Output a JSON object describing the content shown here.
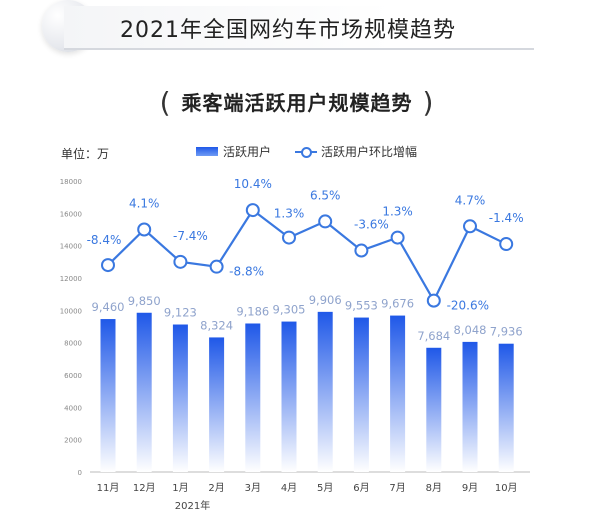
{
  "header": {
    "title": "2021年全国网约车市场规模趋势",
    "subtitle": "乘客端活跃用户规模趋势",
    "paren_left": "(",
    "paren_right": ")"
  },
  "unit_label": "单位：万",
  "colors": {
    "bar_top": "#1f58e8",
    "bar_bottom": "#ffffff",
    "line": "#3a78e0",
    "bar_label": "#8fa3cc",
    "line_label": "#3a78e0"
  },
  "chart_data": {
    "type": "bar",
    "categories": [
      "11月",
      "12月",
      "1月",
      "2月",
      "3月",
      "4月",
      "5月",
      "6月",
      "7月",
      "8月",
      "9月",
      "10月"
    ],
    "x_group_label": "2021年",
    "ylim": [
      0,
      18000
    ],
    "yticks": [
      0,
      2000,
      4000,
      6000,
      8000,
      10000,
      12000,
      14000,
      16000,
      18000
    ],
    "grid": false,
    "legend_position": "top",
    "series": [
      {
        "name": "活跃用户",
        "type": "bar",
        "values": [
          9460,
          9850,
          9123,
          8324,
          9186,
          9305,
          9906,
          9553,
          9676,
          7684,
          8048,
          7936
        ],
        "labels": [
          "9,460",
          "9,850",
          "9,123",
          "8,324",
          "9,186",
          "9,305",
          "9,906",
          "9,553",
          "9,676",
          "7,684",
          "8,048",
          "7,936"
        ]
      },
      {
        "name": "活跃用户环比增幅",
        "type": "line",
        "values": [
          12800,
          15000,
          13000,
          12700,
          16200,
          14500,
          15500,
          13700,
          14500,
          10600,
          15200,
          14100
        ],
        "labels": [
          "-8.4%",
          "4.1%",
          "-7.4%",
          "-8.8%",
          "10.4%",
          "1.3%",
          "6.5%",
          "-3.6%",
          "1.3%",
          "-20.6%",
          "4.7%",
          "-1.4%"
        ]
      }
    ]
  }
}
